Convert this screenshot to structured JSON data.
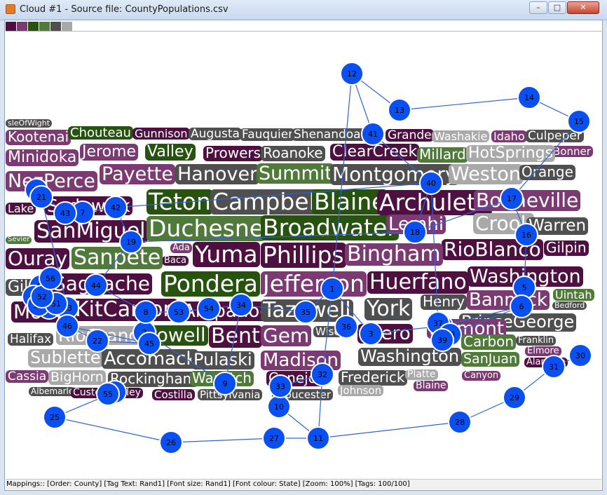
{
  "window": {
    "title": "Cloud #1 - Source file: CountyPopulations.csv",
    "min_glyph": "–",
    "max_glyph": "□",
    "close_glyph": "✕"
  },
  "palette": [
    "#4d1040",
    "#7c3a72",
    "#27520f",
    "#507a3a",
    "#4f4f4f",
    "#a9a9a9"
  ],
  "colors": {
    "dp": "#4d1040",
    "mp": "#7c3a72",
    "dg": "#27520f",
    "mg": "#507a3a",
    "dk": "#4f4f4f",
    "lg": "#a9a9a9",
    "node": "#0a4ff0",
    "edge": "#2f63d8"
  },
  "tags": [
    {
      "text": "sleOfWight",
      "c": "dk",
      "s": 11
    },
    {
      "text": "Kootenai",
      "c": "mp",
      "s": 20
    },
    {
      "text": "Chouteau",
      "c": "dg",
      "s": 18
    },
    {
      "text": "Gunnison",
      "c": "dp",
      "s": 16
    },
    {
      "text": "Augusta",
      "c": "dk",
      "s": 17
    },
    {
      "text": "Fauquier",
      "c": "dk",
      "s": 17
    },
    {
      "text": "Shenandoah",
      "c": "dk",
      "s": 17
    },
    {
      "text": "Grande",
      "c": "dp",
      "s": 17
    },
    {
      "text": "Washakie",
      "c": "lg",
      "s": 16
    },
    {
      "text": "Idaho",
      "c": "mp",
      "s": 16
    },
    {
      "text": "Culpeper",
      "c": "dk",
      "s": 17
    },
    {
      "text": "Bonner",
      "c": "mp",
      "s": 15
    },
    {
      "text": "Minidoka",
      "c": "mp",
      "s": 22
    },
    {
      "text": "Jerome",
      "c": "mp",
      "s": 22
    },
    {
      "text": "Valley",
      "c": "dg",
      "s": 22
    },
    {
      "text": "Prowers",
      "c": "dp",
      "s": 20
    },
    {
      "text": "Roanoke",
      "c": "dk",
      "s": 20
    },
    {
      "text": "ClearCreek",
      "c": "dp",
      "s": 22
    },
    {
      "text": "Millard",
      "c": "mg",
      "s": 20
    },
    {
      "text": "HotSprings",
      "c": "lg",
      "s": 22
    },
    {
      "text": "NezPerce",
      "c": "mp",
      "s": 27
    },
    {
      "text": "Payette",
      "c": "mp",
      "s": 27
    },
    {
      "text": "Hanover",
      "c": "dk",
      "s": 27
    },
    {
      "text": "Summit",
      "c": "mg",
      "s": 27
    },
    {
      "text": "Montgomery",
      "c": "dk",
      "s": 28
    },
    {
      "text": "Weston",
      "c": "lg",
      "s": 27
    },
    {
      "text": "Orange",
      "c": "dk",
      "s": 20
    },
    {
      "text": "Lake",
      "c": "dp",
      "s": 16
    },
    {
      "text": "Sedgwick",
      "c": "dp",
      "s": 25
    },
    {
      "text": "Teton",
      "c": "dg",
      "s": 33
    },
    {
      "text": "Campbell",
      "c": "dk",
      "s": 33
    },
    {
      "text": "Blaine",
      "c": "dg",
      "s": 33
    },
    {
      "text": "Archuleta",
      "c": "dp",
      "s": 33
    },
    {
      "text": "Bonneville",
      "c": "mp",
      "s": 28
    },
    {
      "text": "Crook",
      "c": "lg",
      "s": 28
    },
    {
      "text": "Warren",
      "c": "dk",
      "s": 23
    },
    {
      "text": "Sevier",
      "c": "mg",
      "s": 10
    },
    {
      "text": "SanMiguel",
      "c": "dp",
      "s": 30
    },
    {
      "text": "Duchesne",
      "c": "mg",
      "s": 33
    },
    {
      "text": "Broadwater",
      "c": "dg",
      "s": 33
    },
    {
      "text": "Lemhi",
      "c": "mp",
      "s": 26
    },
    {
      "text": "RioBlanco",
      "c": "dp",
      "s": 28
    },
    {
      "text": "Gilpin",
      "c": "dp",
      "s": 20
    },
    {
      "text": "Ada",
      "c": "mp",
      "s": 13
    },
    {
      "text": "Baca",
      "c": "dp",
      "s": 13
    },
    {
      "text": "Ouray",
      "c": "dp",
      "s": 28
    },
    {
      "text": "Sanpete",
      "c": "mg",
      "s": 30
    },
    {
      "text": "Yuma",
      "c": "dp",
      "s": 33
    },
    {
      "text": "Phillips",
      "c": "dp",
      "s": 33
    },
    {
      "text": "Bingham",
      "c": "mp",
      "s": 30
    },
    {
      "text": "Washington",
      "c": "dp",
      "s": 27
    },
    {
      "text": "Gila",
      "c": "dk",
      "s": 22
    },
    {
      "text": "Saguache",
      "c": "dp",
      "s": 28
    },
    {
      "text": "Pondera",
      "c": "dg",
      "s": 33
    },
    {
      "text": "Jefferson",
      "c": "mp",
      "s": 33
    },
    {
      "text": "Huerfano",
      "c": "dp",
      "s": 30
    },
    {
      "text": "Henry",
      "c": "dk",
      "s": 20
    },
    {
      "text": "Bannock",
      "c": "mp",
      "s": 26
    },
    {
      "text": "Uintah",
      "c": "mg",
      "s": 16
    },
    {
      "text": "Bedford",
      "c": "dk",
      "s": 11
    },
    {
      "text": "Moffat",
      "c": "dp",
      "s": 28
    },
    {
      "text": "KitCarson",
      "c": "dp",
      "s": 30
    },
    {
      "text": "Arapahoe",
      "c": "dp",
      "s": 26
    },
    {
      "text": "Tazewell",
      "c": "dk",
      "s": 30
    },
    {
      "text": "York",
      "c": "dk",
      "s": 30
    },
    {
      "text": "PrinceGeorge",
      "c": "dk",
      "s": 24
    },
    {
      "text": "Halifax",
      "c": "dk",
      "s": 17
    },
    {
      "text": "RioGrande",
      "c": "lg",
      "s": 25
    },
    {
      "text": "Powell",
      "c": "dg",
      "s": 27
    },
    {
      "text": "Bent",
      "c": "dp",
      "s": 30
    },
    {
      "text": "Gem",
      "c": "mp",
      "s": 28
    },
    {
      "text": "Wise",
      "c": "dk",
      "s": 15
    },
    {
      "text": "Otero",
      "c": "dp",
      "s": 26
    },
    {
      "text": "Fremont",
      "c": "mp",
      "s": 26
    },
    {
      "text": "Carbon",
      "c": "mg",
      "s": 20
    },
    {
      "text": "Franklin",
      "c": "dk",
      "s": 13
    },
    {
      "text": "Elmore",
      "c": "mp",
      "s": 13
    },
    {
      "text": "Sublette",
      "c": "lg",
      "s": 24
    },
    {
      "text": "Accomack",
      "c": "dk",
      "s": 26
    },
    {
      "text": "Pulaski",
      "c": "dk",
      "s": 24
    },
    {
      "text": "Madison",
      "c": "mp",
      "s": 26
    },
    {
      "text": "Washington",
      "c": "dk",
      "s": 24
    },
    {
      "text": "SanJuan",
      "c": "mg",
      "s": 19
    },
    {
      "text": "Alamosa",
      "c": "dp",
      "s": 13
    },
    {
      "text": "Cassia",
      "c": "mp",
      "s": 17
    },
    {
      "text": "BigHorn",
      "c": "lg",
      "s": 19
    },
    {
      "text": "Rockingham",
      "c": "dk",
      "s": 20
    },
    {
      "text": "Wasatch",
      "c": "mg",
      "s": 20
    },
    {
      "text": "Conejos",
      "c": "dp",
      "s": 20
    },
    {
      "text": "Frederick",
      "c": "dk",
      "s": 20
    },
    {
      "text": "Platte",
      "c": "lg",
      "s": 14
    },
    {
      "text": "Blaine",
      "c": "mp",
      "s": 14
    },
    {
      "text": "Canyon",
      "c": "mp",
      "s": 13
    },
    {
      "text": "Albemarle",
      "c": "dk",
      "s": 12
    },
    {
      "text": "Custer",
      "c": "dp",
      "s": 14
    },
    {
      "text": "Crowley",
      "c": "dp",
      "s": 14
    },
    {
      "text": "Costilla",
      "c": "dp",
      "s": 15
    },
    {
      "text": "Pittsylvania",
      "c": "dk",
      "s": 15
    },
    {
      "text": "Gloucester",
      "c": "dk",
      "s": 15
    },
    {
      "text": "Johnson",
      "c": "lg",
      "s": 15
    }
  ],
  "nodes": [
    "1",
    "2",
    "3",
    "4",
    "5",
    "6",
    "7",
    "8",
    "9",
    "10",
    "11",
    "12",
    "13",
    "14",
    "15",
    "16",
    "17",
    "18",
    "19",
    "20",
    "21",
    "22",
    "23",
    "24",
    "25",
    "26",
    "27",
    "28",
    "29",
    "30",
    "31",
    "32",
    "33",
    "34",
    "35",
    "36",
    "37",
    "38",
    "39",
    "40",
    "41",
    "42",
    "43",
    "44",
    "45",
    "46",
    "47",
    "48",
    "49",
    "50",
    "51",
    "52",
    "53",
    "54",
    "55",
    "56"
  ],
  "status": "Mappings:: [Order: County]  [Tag Text: Rand1]  [Font size: Rand1]  [Font colour: State]  [Zoom: 100%]  [Tags: 100/100]"
}
